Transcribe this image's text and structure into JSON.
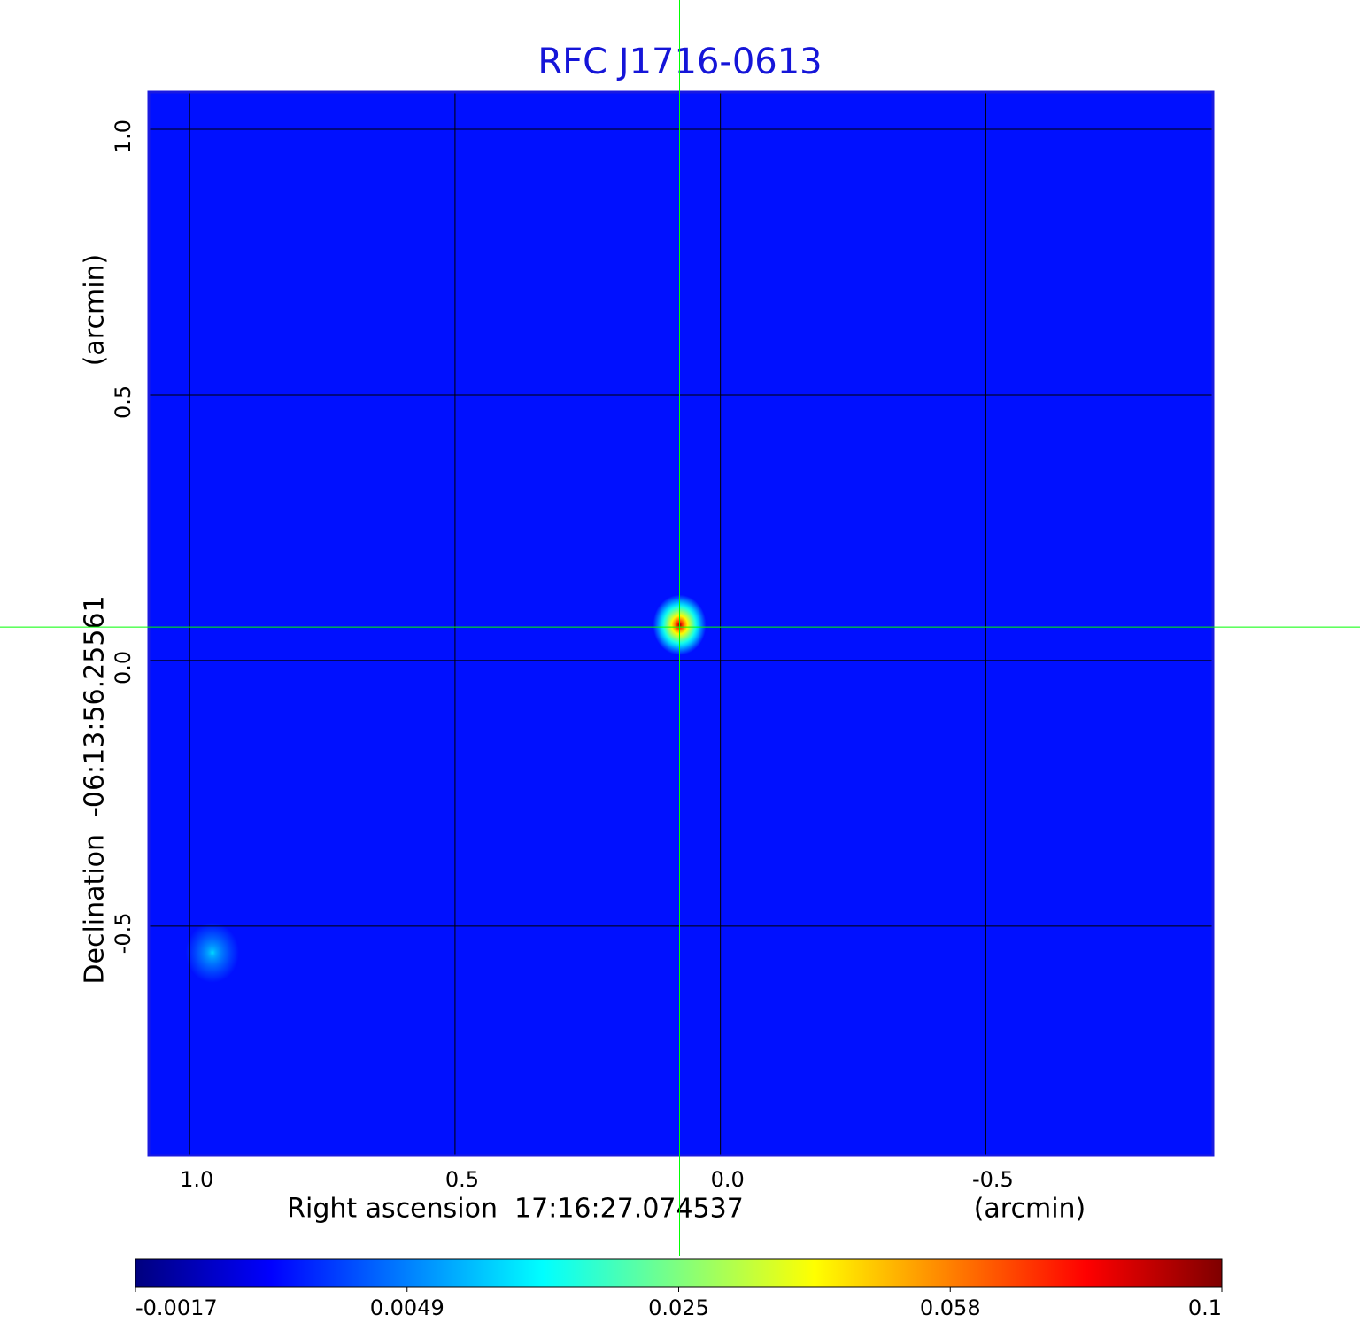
{
  "chart_data": {
    "type": "image",
    "title": "RFC J1716-0613",
    "x_label": "Right ascension  17:16:27.074537",
    "x_unit": "(arcmin)",
    "y_label": "Declination  -06:13:56.25561",
    "y_unit": "(arcmin)",
    "xlim": [
      1.077,
      -0.928
    ],
    "ylim": [
      -0.932,
      1.07
    ],
    "xticks": [
      {
        "value": 1,
        "label": "1.0"
      },
      0.5,
      {
        "value": 0,
        "label": "0.0"
      },
      -0.5
    ],
    "yticks": [
      {
        "value": 1,
        "label": "1.0"
      },
      0.5,
      {
        "value": 0,
        "label": "0.0"
      },
      -0.5
    ],
    "grid": true,
    "background": 0.002,
    "sources": [
      {
        "x": 0.077,
        "y": 0.067,
        "peak": 0.1
      },
      {
        "x": 0.957,
        "y": -0.55,
        "peak": 0.012
      }
    ],
    "crosshair": {
      "x": 0.077,
      "y": 0.063,
      "color": "#00ff00"
    },
    "colorbar": {
      "ticks": [
        -0.0017,
        0.0049,
        0.025,
        0.058,
        0.1
      ],
      "colormap": [
        "#00007f",
        "#0000ff",
        "#0080ff",
        "#00ffff",
        "#7fff7f",
        "#ffff00",
        "#ff8000",
        "#ff0000",
        "#7f0000"
      ]
    }
  }
}
